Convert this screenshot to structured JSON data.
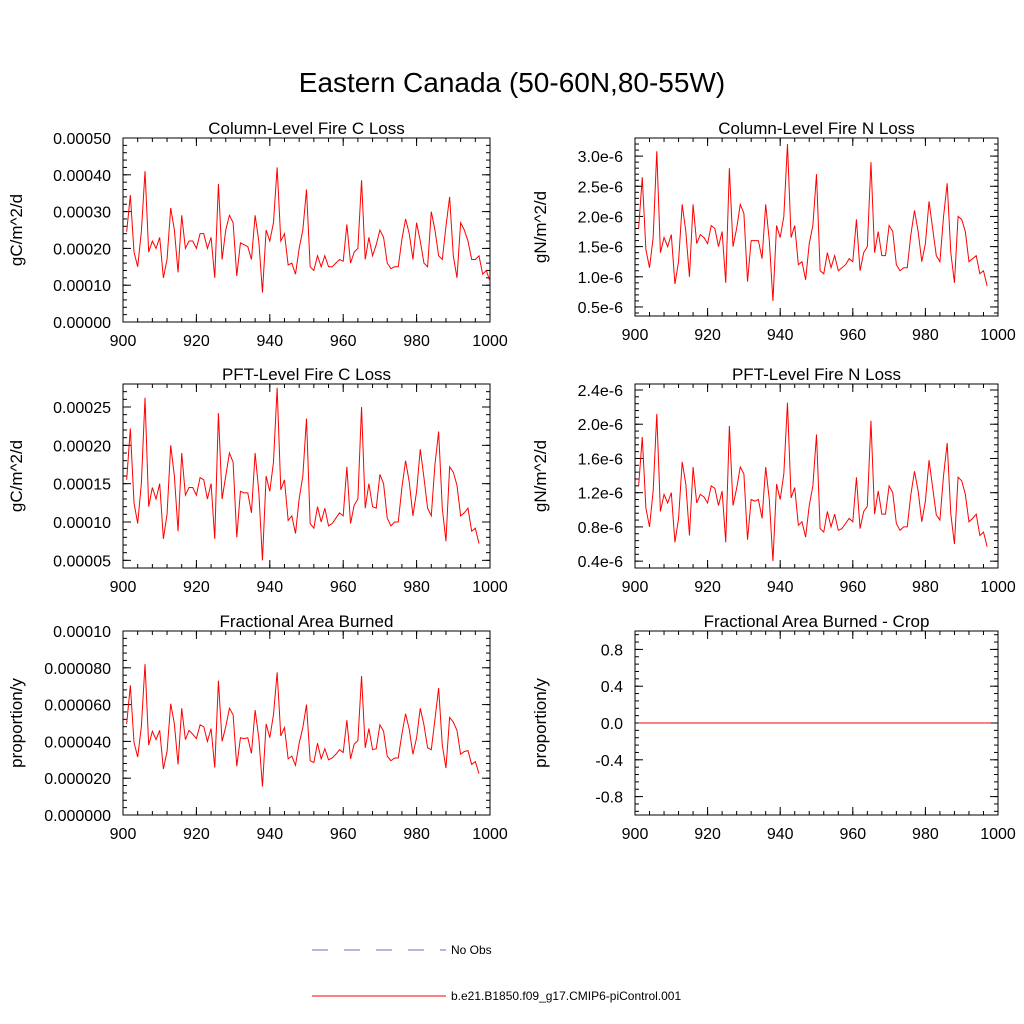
{
  "figure": {
    "title": "Eastern Canada (50-60N,80-55W)"
  },
  "legend": {
    "entries": [
      {
        "label": "No Obs",
        "color": "#6a6ad8",
        "style": "dashed"
      },
      {
        "label": "b.e21.B1850.f09_g17.CMIP6-piControl.001",
        "color": "#ff0000",
        "style": "solid"
      }
    ]
  },
  "chart_data": [
    {
      "type": "line",
      "title": "Column-Level Fire C Loss",
      "xlabel": "",
      "ylabel": "gC/m^2/d",
      "xlim": [
        900,
        1000
      ],
      "ylim": [
        0.0,
        0.0005
      ],
      "xticks": [
        900,
        920,
        940,
        960,
        980,
        1000
      ],
      "xtick_labels": [
        "900",
        "920",
        "940",
        "960",
        "980",
        "1000"
      ],
      "yticks": [
        0.0,
        0.0001,
        0.0002,
        0.0003,
        0.0004,
        0.0005
      ],
      "ytick_labels": [
        "0.00000",
        "0.00010",
        "0.00020",
        "0.00030",
        "0.00040",
        "0.00050"
      ],
      "x_start": 901,
      "series": [
        {
          "name": "b.e21.B1850.f09_g17.CMIP6-piControl.001",
          "color": "#ff0000",
          "values": [
            0.000245,
            0.000345,
            0.00019,
            0.00015,
            0.000245,
            0.00041,
            0.00019,
            0.00022,
            0.0002,
            0.00023,
            0.00012,
            0.00017,
            0.00031,
            0.00025,
            0.000135,
            0.00029,
            0.0002,
            0.00022,
            0.00022,
            0.0002,
            0.00024,
            0.00024,
            0.0002,
            0.00023,
            0.00012,
            0.000375,
            0.00017,
            0.00025,
            0.00029,
            0.00027,
            0.000125,
            0.000215,
            0.00021,
            0.000205,
            0.00017,
            0.00029,
            0.00022,
            8e-05,
            0.00025,
            0.00022,
            0.00027,
            0.00042,
            0.00022,
            0.00024,
            0.000155,
            0.00016,
            0.00013,
            0.0002,
            0.00025,
            0.00036,
            0.00015,
            0.00014,
            0.00018,
            0.00015,
            0.00018,
            0.00015,
            0.00015,
            0.00016,
            0.00017,
            0.000165,
            0.000265,
            0.00016,
            0.00019,
            0.0002,
            0.000385,
            0.00017,
            0.00023,
            0.00018,
            0.00021,
            0.00025,
            0.00023,
            0.00016,
            0.000145,
            0.00015,
            0.00015,
            0.000225,
            0.00028,
            0.00024,
            0.00017,
            0.00027,
            0.00022,
            0.00016,
            0.00015,
            0.0003,
            0.00025,
            0.00018,
            0.00017,
            0.00026,
            0.00034,
            0.00018,
            0.00012,
            0.00027,
            0.00025,
            0.00022,
            0.00017,
            0.00017,
            0.00018,
            0.00013,
            0.00014,
            0.00011
          ]
        }
      ]
    },
    {
      "type": "line",
      "title": "Column-Level Fire N Loss",
      "xlabel": "",
      "ylabel": "gN/m^2/d",
      "xlim": [
        900,
        1000
      ],
      "ylim": [
        3.5e-07,
        3.3e-06
      ],
      "xticks": [
        900,
        920,
        940,
        960,
        980,
        1000
      ],
      "xtick_labels": [
        "900",
        "920",
        "940",
        "960",
        "980",
        "1000"
      ],
      "yticks": [
        5e-07,
        1e-06,
        1.5e-06,
        2e-06,
        2.5e-06,
        3e-06
      ],
      "ytick_labels": [
        "0.5e-6",
        "1.0e-6",
        "1.5e-6",
        "2.0e-6",
        "2.5e-6",
        "3.0e-6"
      ],
      "x_start": 901,
      "series": [
        {
          "name": "b.e21.B1850.f09_g17.CMIP6-piControl.001",
          "color": "#ff0000",
          "values": [
            1.8e-06,
            2.65e-06,
            1.45e-06,
            1.15e-06,
            1.65e-06,
            3.08e-06,
            1.4e-06,
            1.65e-06,
            1.5e-06,
            1.7e-06,
            8.8e-07,
            1.25e-06,
            2.2e-06,
            1.75e-06,
            1e-06,
            2.2e-06,
            1.55e-06,
            1.7e-06,
            1.65e-06,
            1.55e-06,
            1.85e-06,
            1.8e-06,
            1.5e-06,
            1.75e-06,
            9e-07,
            2.8e-06,
            1.5e-06,
            1.8e-06,
            2.2e-06,
            2.05e-06,
            9.2e-07,
            1.6e-06,
            1.6e-06,
            1.6e-06,
            1.3e-06,
            2.2e-06,
            1.6e-06,
            6e-07,
            1.85e-06,
            1.65e-06,
            2e-06,
            3.2e-06,
            1.65e-06,
            1.85e-06,
            1.2e-06,
            1.25e-06,
            9.5e-07,
            1.55e-06,
            1.85e-06,
            2.7e-06,
            1.1e-06,
            1.05e-06,
            1.4e-06,
            1.15e-06,
            1.35e-06,
            1.1e-06,
            1.15e-06,
            1.2e-06,
            1.3e-06,
            1.25e-06,
            1.95e-06,
            1.1e-06,
            1.4e-06,
            1.5e-06,
            2.9e-06,
            1.4e-06,
            1.75e-06,
            1.35e-06,
            1.35e-06,
            1.85e-06,
            1.75e-06,
            1.2e-06,
            1.1e-06,
            1.15e-06,
            1.15e-06,
            1.7e-06,
            2.1e-06,
            1.75e-06,
            1.25e-06,
            1.55e-06,
            2.25e-06,
            1.8e-06,
            1.35e-06,
            1.25e-06,
            2e-06,
            2.55e-06,
            1.4e-06,
            9e-07,
            2e-06,
            1.95e-06,
            1.75e-06,
            1.25e-06,
            1.3e-06,
            1.35e-06,
            1.05e-06,
            1.1e-06,
            8.5e-07
          ]
        }
      ]
    },
    {
      "type": "line",
      "title": "PFT-Level Fire C Loss",
      "xlabel": "",
      "ylabel": "gC/m^2/d",
      "xlim": [
        900,
        1000
      ],
      "ylim": [
        4e-05,
        0.00028
      ],
      "xticks": [
        900,
        920,
        940,
        960,
        980,
        1000
      ],
      "xtick_labels": [
        "900",
        "920",
        "940",
        "960",
        "980",
        "1000"
      ],
      "yticks": [
        5e-05,
        0.0001,
        0.00015,
        0.0002,
        0.00025
      ],
      "ytick_labels": [
        "0.00005",
        "0.00010",
        "0.00015",
        "0.00020",
        "0.00025"
      ],
      "x_start": 901,
      "series": [
        {
          "name": "b.e21.B1850.f09_g17.CMIP6-piControl.001",
          "color": "#ff0000",
          "values": [
            0.000155,
            0.000222,
            0.000125,
            9.8e-05,
            0.00015,
            0.000262,
            0.00012,
            0.000145,
            0.00013,
            0.00015,
            7.8e-05,
            0.00011,
            0.0002,
            0.00016,
            8.8e-05,
            0.00019,
            0.000135,
            0.000145,
            0.000145,
            0.000135,
            0.000158,
            0.000155,
            0.00013,
            0.00015,
            7.8e-05,
            0.000242,
            0.00013,
            0.00016,
            0.00019,
            0.000178,
            8e-05,
            0.00014,
            0.000138,
            0.000138,
            0.000112,
            0.00019,
            0.00014,
            5e-05,
            0.00016,
            0.00014,
            0.000178,
            0.000275,
            0.000142,
            0.000155,
            0.000102,
            0.000108,
            8.5e-05,
            0.00013,
            0.00016,
            0.000235,
            9.8e-05,
            9.2e-05,
            0.00012,
            0.0001,
            0.000118,
            9.5e-05,
            9.8e-05,
            0.000105,
            0.000112,
            0.000108,
            0.000172,
            9.8e-05,
            0.000122,
            0.00013,
            0.00025,
            0.000118,
            0.00015,
            0.00012,
            0.000118,
            0.000162,
            0.00015,
            0.000105,
            9.5e-05,
            0.0001,
            0.0001,
            0.000145,
            0.00018,
            0.000152,
            0.000108,
            0.00014,
            0.000195,
            0.000158,
            0.000118,
            0.000108,
            0.000175,
            0.000218,
            0.000118,
            7.5e-05,
            0.000172,
            0.000165,
            0.000148,
            0.000108,
            0.000112,
            0.000118,
            8.8e-05,
            9.2e-05,
            7.2e-05
          ]
        }
      ]
    },
    {
      "type": "line",
      "title": "PFT-Level Fire N Loss",
      "xlabel": "",
      "ylabel": "gN/m^2/d",
      "xlim": [
        900,
        1000
      ],
      "ylim": [
        3.2e-07,
        2.47e-06
      ],
      "xticks": [
        900,
        920,
        940,
        960,
        980,
        1000
      ],
      "xtick_labels": [
        "900",
        "920",
        "940",
        "960",
        "980",
        "1000"
      ],
      "yticks": [
        4e-07,
        8e-07,
        1.2e-06,
        1.6e-06,
        2e-06,
        2.4e-06
      ],
      "ytick_labels": [
        "0.4e-6",
        "0.8e-6",
        "1.2e-6",
        "1.6e-6",
        "2.0e-6",
        "2.4e-6"
      ],
      "x_start": 901,
      "series": [
        {
          "name": "b.e21.B1850.f09_g17.CMIP6-piControl.001",
          "color": "#ff0000",
          "values": [
            1.28e-06,
            1.85e-06,
            1.02e-06,
            8e-07,
            1.22e-06,
            2.12e-06,
            9.8e-07,
            1.18e-06,
            1.08e-06,
            1.2e-06,
            6.2e-07,
            9e-07,
            1.56e-06,
            1.3e-06,
            7e-07,
            1.5e-06,
            1.08e-06,
            1.18e-06,
            1.15e-06,
            1.08e-06,
            1.28e-06,
            1.25e-06,
            1.05e-06,
            1.22e-06,
            6.2e-07,
            1.98e-06,
            1.05e-06,
            1.25e-06,
            1.5e-06,
            1.42e-06,
            6.5e-07,
            1.12e-06,
            1.1e-06,
            1.12e-06,
            9e-07,
            1.5e-06,
            1.12e-06,
            4e-07,
            1.3e-06,
            1.12e-06,
            1.42e-06,
            2.25e-06,
            1.14e-06,
            1.26e-06,
            8.2e-07,
            8.6e-07,
            6.8e-07,
            1.05e-06,
            1.28e-06,
            1.88e-06,
            7.8e-07,
            7.4e-07,
            9.8e-07,
            8e-07,
            9.5e-07,
            7.6e-07,
            7.8e-07,
            8.4e-07,
            9e-07,
            8.6e-07,
            1.38e-06,
            7.8e-07,
            9.8e-07,
            1.04e-06,
            2.04e-06,
            9.5e-07,
            1.22e-06,
            9.5e-07,
            9.5e-07,
            1.28e-06,
            1.2e-06,
            8.4e-07,
            7.6e-07,
            8e-07,
            8e-07,
            1.18e-06,
            1.45e-06,
            1.22e-06,
            8.6e-07,
            1.1e-06,
            1.58e-06,
            1.26e-06,
            9.4e-07,
            8.8e-07,
            1.4e-06,
            1.78e-06,
            9.5e-07,
            6e-07,
            1.38e-06,
            1.34e-06,
            1.18e-06,
            8.6e-07,
            9e-07,
            9.5e-07,
            7e-07,
            7.4e-07,
            5.7e-07
          ]
        }
      ]
    },
    {
      "type": "line",
      "title": "Fractional Area Burned",
      "xlabel": "",
      "ylabel": "proportion/y",
      "xlim": [
        900,
        1000
      ],
      "ylim": [
        0.0,
        0.0001
      ],
      "xticks": [
        900,
        920,
        940,
        960,
        980,
        1000
      ],
      "xtick_labels": [
        "900",
        "920",
        "940",
        "960",
        "980",
        "1000"
      ],
      "yticks": [
        0.0,
        2e-05,
        4e-05,
        6e-05,
        8e-05,
        0.0001
      ],
      "ytick_labels": [
        "0.000000",
        "0.000020",
        "0.000040",
        "0.000060",
        "0.000080",
        "0.00010"
      ],
      "x_start": 901,
      "series": [
        {
          "name": "b.e21.B1850.f09_g17.CMIP6-piControl.001",
          "color": "#ff0000",
          "values": [
            4.95e-05,
            7.05e-05,
            3.95e-05,
            3.15e-05,
            4.8e-05,
            8.2e-05,
            3.8e-05,
            4.55e-05,
            4.1e-05,
            4.6e-05,
            2.5e-05,
            3.45e-05,
            6.05e-05,
            4.95e-05,
            2.75e-05,
            5.8e-05,
            4.1e-05,
            4.6e-05,
            4.4e-05,
            4.15e-05,
            4.9e-05,
            4.8e-05,
            4e-05,
            4.7e-05,
            2.58e-05,
            7.3e-05,
            4e-05,
            4.8e-05,
            5.8e-05,
            5.45e-05,
            2.65e-05,
            4.2e-05,
            4.15e-05,
            4.2e-05,
            3.35e-05,
            5.7e-05,
            4.2e-05,
            1.55e-05,
            4.95e-05,
            4.2e-05,
            5.45e-05,
            7.75e-05,
            4.3e-05,
            4.75e-05,
            3.05e-05,
            3.2e-05,
            2.7e-05,
            3.9e-05,
            4.75e-05,
            6e-05,
            2.95e-05,
            2.85e-05,
            3.9e-05,
            3.05e-05,
            3.6e-05,
            3e-05,
            3.1e-05,
            3.3e-05,
            3.55e-05,
            3.4e-05,
            5.15e-05,
            3.05e-05,
            3.85e-05,
            4.05e-05,
            7.55e-05,
            3.65e-05,
            4.7e-05,
            3.55e-05,
            3.6e-05,
            4.9e-05,
            4.55e-05,
            3.2e-05,
            2.95e-05,
            3.1e-05,
            3.1e-05,
            4.4e-05,
            5.5e-05,
            4.65e-05,
            3.3e-05,
            4.2e-05,
            5.8e-05,
            4.9e-05,
            3.65e-05,
            3.55e-05,
            5.2e-05,
            6.9e-05,
            3.8e-05,
            2.55e-05,
            5.3e-05,
            5.05e-05,
            4.6e-05,
            3.3e-05,
            3.45e-05,
            3.5e-05,
            2.75e-05,
            2.9e-05,
            2.25e-05
          ]
        }
      ]
    },
    {
      "type": "line",
      "title": "Fractional Area Burned - Crop",
      "xlabel": "",
      "ylabel": "proportion/y",
      "xlim": [
        900,
        1000
      ],
      "ylim": [
        -1.0,
        1.0
      ],
      "xticks": [
        900,
        920,
        940,
        960,
        980,
        1000
      ],
      "xtick_labels": [
        "900",
        "920",
        "940",
        "960",
        "980",
        "1000"
      ],
      "yticks": [
        -0.8,
        -0.4,
        0.0,
        0.4,
        0.8
      ],
      "ytick_labels": [
        "-0.8",
        "-0.4",
        "0.0",
        "0.4",
        "0.8"
      ],
      "x_start": 901,
      "series": [
        {
          "name": "b.e21.B1850.f09_g17.CMIP6-piControl.001",
          "color": "#ff0000",
          "values": [
            0.0,
            0.0
          ]
        }
      ]
    }
  ]
}
